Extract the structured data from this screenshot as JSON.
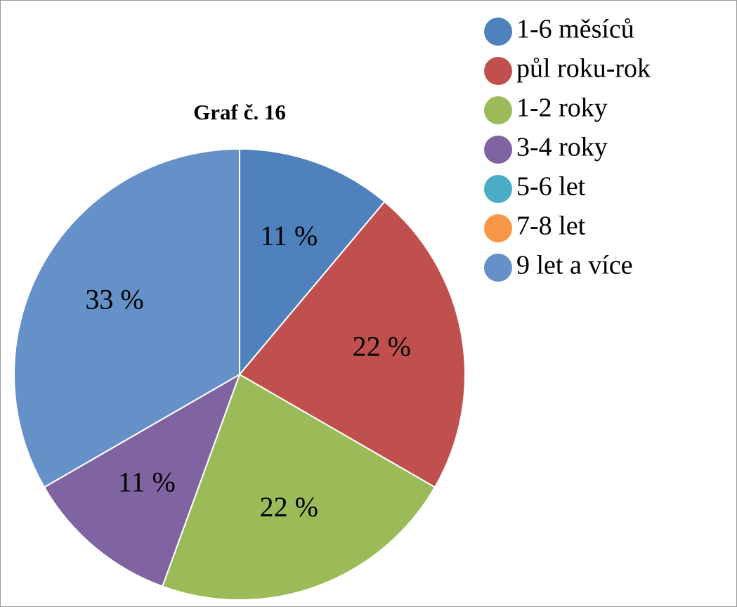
{
  "chart_data": {
    "type": "pie",
    "title": "Graf č. 16",
    "categories": [
      "1-6 měsíců",
      "půl roku-rok",
      "1-2 roky",
      "3-4 roky",
      "5-6 let",
      "7-8 let",
      "9 let a více"
    ],
    "values": [
      11,
      22,
      22,
      11,
      0,
      0,
      33
    ],
    "value_labels": [
      "11 %",
      "22 %",
      "22 %",
      "11 %",
      null,
      null,
      "33 %"
    ],
    "colors": [
      "#4f81bd",
      "#c0504d",
      "#9bbb59",
      "#8064a2",
      "#4bacc6",
      "#f79646",
      "#6590c8"
    ],
    "legend": "top-right"
  }
}
